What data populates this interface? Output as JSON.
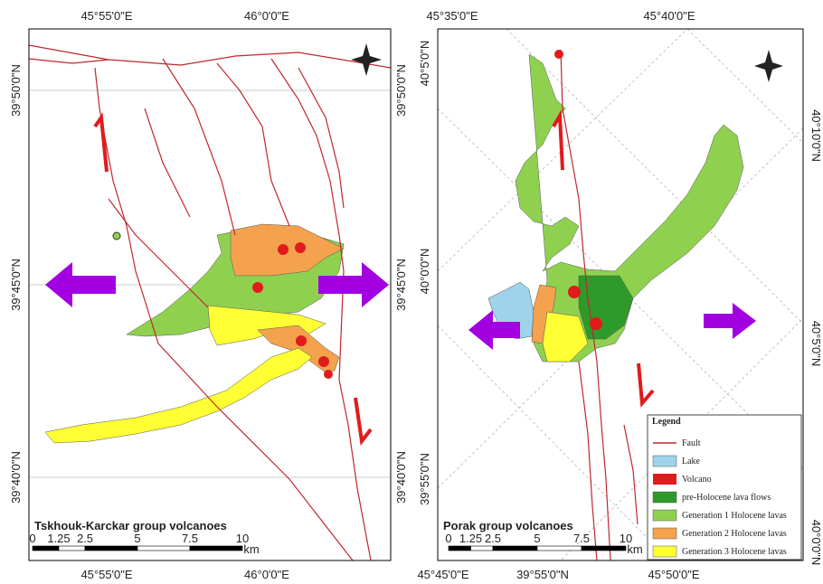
{
  "left_map": {
    "title": "Tskhouk-Karckar group volcanoes",
    "top_labels": [
      "45°55'0\"E",
      "46°0'0\"E"
    ],
    "bottom_labels": [
      "45°55'0\"E",
      "46°0'0\"E"
    ],
    "left_labels": [
      "39°50'0\"N",
      "39°45'0\"N",
      "39°40'0\"N"
    ],
    "right_labels": [
      "39°50'0\"N",
      "39°45'0\"N",
      "39°40'0\"N"
    ],
    "scale_labels": [
      "0",
      "1.25",
      "2.5",
      "5",
      "7.5",
      "10"
    ],
    "scale_unit": "km"
  },
  "right_map": {
    "title": "Porak group volcanoes",
    "top_labels": [
      "45°35'0\"E",
      "45°40'0\"E"
    ],
    "bottom_labels": [
      "45°45'0\"E",
      "39°55'0\"N",
      "45°50'0\"E"
    ],
    "left_labels": [
      "40°5'0\"N",
      "40°0'0\"N",
      "39°55'0\"N"
    ],
    "right_labels": [
      "40°10'0\"N",
      "40°5'0\"N",
      "40°0'0\"N"
    ],
    "scale_labels": [
      "0",
      "1.25",
      "2.5",
      "5",
      "7.5",
      "10"
    ],
    "scale_unit": "km",
    "legend": {
      "title": "Legend",
      "items": [
        "Fault",
        "Lake",
        "Volcano",
        "pre-Holocene lava flows",
        "Generation 1 Holocene lavas",
        "Generation 2 Holocene lavas",
        "Generation 3 Holocene lavas"
      ]
    }
  }
}
